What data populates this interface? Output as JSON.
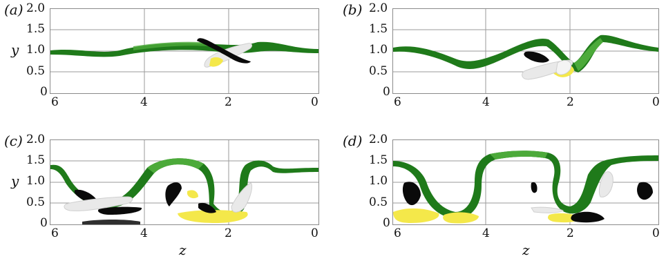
{
  "panels": [
    {
      "label": "(a)",
      "yticks": [
        "2.0",
        "1.5",
        "1.0",
        "0.5",
        "0"
      ],
      "xticks": [
        "6",
        "4",
        "2",
        "0"
      ],
      "ylabel": "y",
      "xlabel": ""
    },
    {
      "label": "(b)",
      "yticks": [
        "2.0",
        "1.5",
        "1.0",
        "0.5",
        "0"
      ],
      "xticks": [
        "6",
        "4",
        "2",
        "0"
      ],
      "ylabel": "",
      "xlabel": ""
    },
    {
      "label": "(c)",
      "yticks": [
        "2.0",
        "1.5",
        "1.0",
        "0.5",
        "0"
      ],
      "xticks": [
        "6",
        "4",
        "2",
        "0"
      ],
      "ylabel": "y",
      "xlabel": "z"
    },
    {
      "label": "(d)",
      "yticks": [
        "2.0",
        "1.5",
        "1.0",
        "0.5",
        "0"
      ],
      "xticks": [
        "6",
        "4",
        "2",
        "0"
      ],
      "ylabel": "",
      "xlabel": "z"
    }
  ],
  "colors": {
    "green": "#1f7a1a",
    "green_light": "#4caa3a",
    "black": "#0a0a0a",
    "white_structure": "#e9e9e9",
    "yellow": "#f4e84a",
    "grid": "#9a9a9a"
  }
}
